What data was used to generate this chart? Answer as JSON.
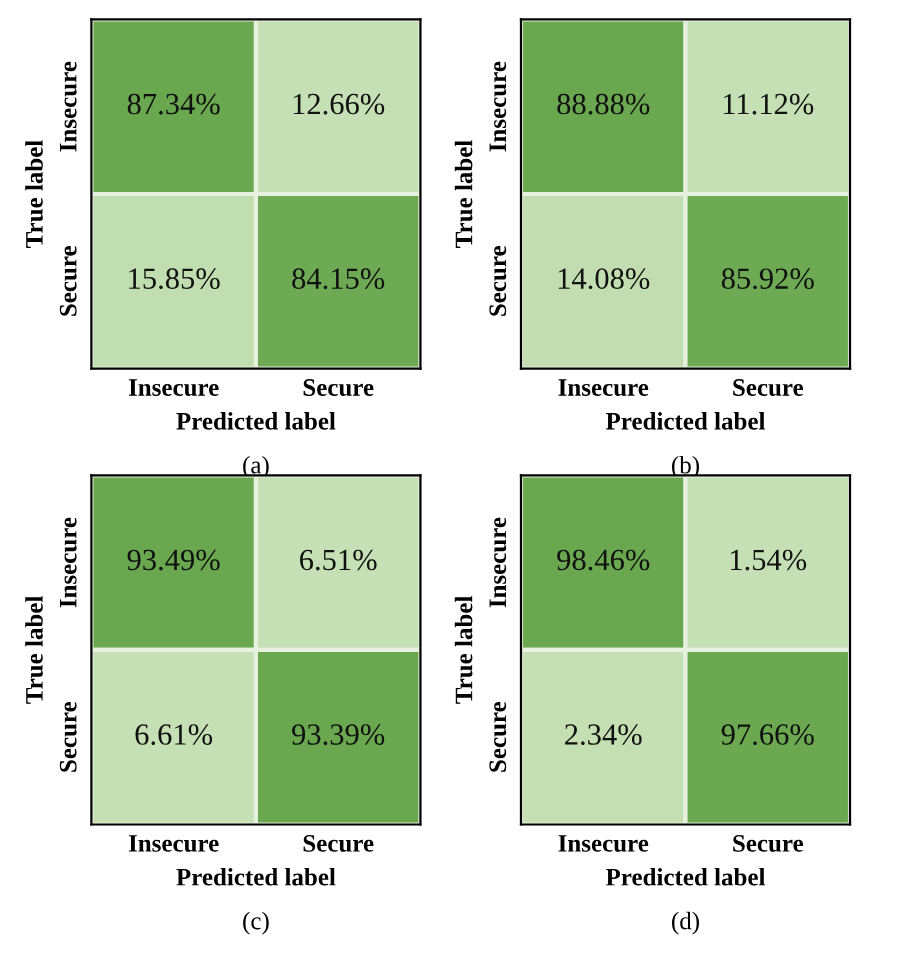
{
  "chart_data": [
    {
      "type": "heatmap",
      "categories": [
        "Insecure",
        "Secure"
      ],
      "y_categories": [
        "Insecure",
        "Secure"
      ],
      "cells": [
        [
          87.34,
          12.66
        ],
        [
          15.85,
          84.15
        ]
      ],
      "cell_labels": [
        [
          "87.34%",
          "12.66%"
        ],
        [
          "15.85%",
          "84.15%"
        ]
      ],
      "xlabel": "Predicted label",
      "ylabel": "True label",
      "annotations": [
        "(a)"
      ]
    },
    {
      "type": "heatmap",
      "categories": [
        "Insecure",
        "Secure"
      ],
      "y_categories": [
        "Insecure",
        "Secure"
      ],
      "cells": [
        [
          88.88,
          11.12
        ],
        [
          14.08,
          85.92
        ]
      ],
      "cell_labels": [
        [
          "88.88%",
          "11.12%"
        ],
        [
          "14.08%",
          "85.92%"
        ]
      ],
      "xlabel": "Predicted label",
      "ylabel": "True label",
      "annotations": [
        "(b)"
      ]
    },
    {
      "type": "heatmap",
      "categories": [
        "Insecure",
        "Secure"
      ],
      "y_categories": [
        "Insecure",
        "Secure"
      ],
      "cells": [
        [
          93.49,
          6.51
        ],
        [
          6.61,
          93.39
        ]
      ],
      "cell_labels": [
        [
          "93.49%",
          "6.51%"
        ],
        [
          "6.61%",
          "93.39%"
        ]
      ],
      "xlabel": "Predicted label",
      "ylabel": "True label",
      "annotations": [
        "(c)"
      ]
    },
    {
      "type": "heatmap",
      "categories": [
        "Insecure",
        "Secure"
      ],
      "y_categories": [
        "Insecure",
        "Secure"
      ],
      "cells": [
        [
          98.46,
          1.54
        ],
        [
          2.34,
          97.66
        ]
      ],
      "cell_labels": [
        [
          "98.46%",
          "1.54%"
        ],
        [
          "2.34%",
          "97.66%"
        ]
      ],
      "xlabel": "Predicted label",
      "ylabel": "True label",
      "annotations": [
        "(d)"
      ]
    }
  ]
}
